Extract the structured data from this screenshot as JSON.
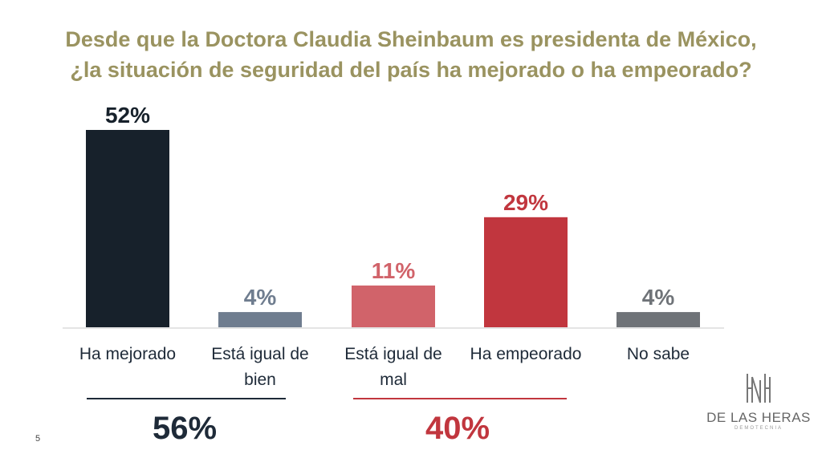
{
  "title_line1": "Desde que la Doctora Claudia Sheinbaum es presidenta de México,",
  "title_line2": "¿la situación de seguridad del país ha mejorado o ha empeorado?",
  "chart_data": {
    "type": "bar",
    "title": "Desde que la Doctora Claudia Sheinbaum es presidenta de México, ¿la situación de seguridad del país ha mejorado o ha empeorado?",
    "categories": [
      "Ha mejorado",
      "Está igual de bien",
      "Está igual de mal",
      "Ha empeorado",
      "No sabe"
    ],
    "category_lines": [
      [
        "Ha mejorado"
      ],
      [
        "Está igual de",
        "bien"
      ],
      [
        "Está igual de",
        "mal"
      ],
      [
        "Ha empeorado"
      ],
      [
        "No sabe"
      ]
    ],
    "values": [
      52,
      4,
      11,
      29,
      4
    ],
    "value_labels": [
      "52%",
      "4%",
      "11%",
      "29%",
      "4%"
    ],
    "bar_colors": [
      "#17212b",
      "#6f7d8f",
      "#d1636a",
      "#c1363e",
      "#6f7378"
    ],
    "label_colors": [
      "#17212b",
      "#6f7d8f",
      "#d1636a",
      "#c1363e",
      "#6f7378"
    ],
    "ylim": [
      0,
      52
    ],
    "xlabel": "",
    "ylabel": "",
    "grid": false,
    "groups": [
      {
        "total": "56%",
        "color": "#1e2a38",
        "categories": [
          "Ha mejorado",
          "Está igual de bien"
        ]
      },
      {
        "total": "40%",
        "color": "#c1363e",
        "categories": [
          "Está igual de mal",
          "Ha empeorado"
        ]
      }
    ]
  },
  "page_number": "5",
  "logo": {
    "name": "DE LAS HERAS",
    "subtitle": "DEMOTECNIA"
  }
}
